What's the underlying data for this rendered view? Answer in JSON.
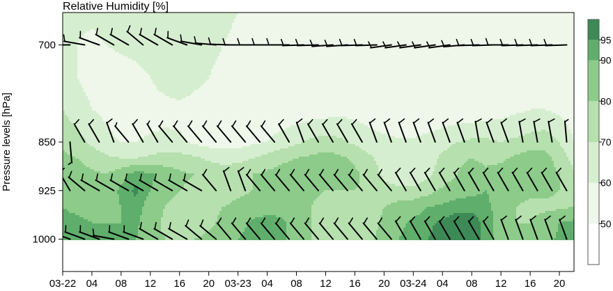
{
  "chart_data": {
    "type": "heatmap",
    "title": "Relative Humidity [%]",
    "ylabel": "Pressure levels [hPa]",
    "xlabel": "",
    "y_tick_labels": [
      "700",
      "850",
      "925",
      "1000"
    ],
    "y_ticks": [
      700,
      850,
      925,
      1000
    ],
    "ylim": [
      1050,
      650
    ],
    "x_tick_labels": [
      "03-22",
      "04",
      "08",
      "12",
      "16",
      "20",
      "03-23",
      "04",
      "08",
      "12",
      "16",
      "20",
      "03-24",
      "04",
      "08",
      "12",
      "16",
      "20"
    ],
    "x_ticks_hours": [
      0,
      4,
      8,
      12,
      16,
      20,
      24,
      28,
      32,
      36,
      40,
      44,
      48,
      52,
      56,
      60,
      64,
      68
    ],
    "xlim_hours": [
      0,
      70
    ],
    "colorbar": {
      "levels": [
        50,
        60,
        70,
        80,
        90,
        95
      ],
      "level_labels": [
        "50",
        "60",
        "70",
        "80",
        "90",
        "95"
      ],
      "range": [
        40,
        100
      ],
      "bins": [
        [
          40,
          50
        ],
        [
          50,
          60
        ],
        [
          60,
          70
        ],
        [
          70,
          80
        ],
        [
          80,
          90
        ],
        [
          90,
          95
        ],
        [
          95,
          100
        ]
      ],
      "colors": [
        "#ffffff",
        "#eef7ea",
        "#d6eed0",
        "#b6e0ae",
        "#8ccb89",
        "#5fae6b",
        "#3d8a57"
      ]
    },
    "levels_hpa": [
      700,
      850,
      925,
      1000
    ],
    "rh_grid": {
      "x_hours": [
        0,
        2,
        4,
        6,
        8,
        10,
        12,
        14,
        16,
        18,
        20,
        22,
        24,
        26,
        28,
        30,
        32,
        34,
        36,
        38,
        40,
        42,
        44,
        46,
        48,
        50,
        52,
        54,
        56,
        58,
        60,
        62,
        64,
        66,
        68,
        70
      ],
      "p_hpa": [
        650,
        700,
        750,
        800,
        850,
        875,
        900,
        925,
        950,
        975,
        1000
      ],
      "values": [
        [
          62,
          62,
          62,
          64,
          64,
          65,
          65,
          66,
          66,
          65,
          63,
          62,
          60,
          59,
          58,
          57,
          57,
          56,
          56,
          56,
          56,
          56,
          56,
          56,
          56,
          55,
          55,
          55,
          55,
          55,
          56,
          56,
          56,
          57,
          57,
          58
        ],
        [
          62,
          60,
          58,
          60,
          62,
          64,
          66,
          68,
          70,
          66,
          63,
          60,
          58,
          58,
          57,
          57,
          57,
          57,
          57,
          57,
          57,
          57,
          56,
          56,
          56,
          56,
          56,
          56,
          56,
          56,
          56,
          56,
          57,
          57,
          58,
          58
        ],
        [
          66,
          60,
          57,
          55,
          55,
          56,
          60,
          66,
          70,
          64,
          60,
          57,
          56,
          56,
          56,
          56,
          56,
          57,
          57,
          57,
          57,
          57,
          56,
          56,
          56,
          55,
          55,
          55,
          55,
          55,
          55,
          56,
          56,
          57,
          58,
          60
        ],
        [
          70,
          64,
          60,
          58,
          55,
          53,
          54,
          55,
          56,
          55,
          54,
          54,
          53,
          53,
          53,
          53,
          53,
          54,
          55,
          57,
          56,
          55,
          54,
          53,
          53,
          52,
          52,
          52,
          52,
          54,
          56,
          58,
          60,
          60,
          58,
          54
        ],
        [
          78,
          74,
          68,
          62,
          60,
          60,
          62,
          64,
          62,
          58,
          56,
          56,
          56,
          58,
          60,
          64,
          68,
          72,
          74,
          72,
          68,
          64,
          62,
          61,
          61,
          63,
          66,
          70,
          72,
          72,
          70,
          72,
          74,
          76,
          70,
          60
        ],
        [
          82,
          80,
          76,
          72,
          70,
          70,
          72,
          74,
          74,
          72,
          68,
          66,
          66,
          70,
          74,
          78,
          80,
          82,
          84,
          82,
          78,
          72,
          66,
          63,
          62,
          66,
          72,
          78,
          80,
          78,
          78,
          82,
          86,
          84,
          76,
          66
        ],
        [
          84,
          84,
          82,
          80,
          86,
          94,
          92,
          86,
          82,
          80,
          78,
          76,
          78,
          80,
          82,
          84,
          84,
          84,
          84,
          84,
          82,
          76,
          68,
          64,
          64,
          68,
          74,
          80,
          84,
          82,
          84,
          86,
          86,
          84,
          80,
          72
        ],
        [
          86,
          86,
          84,
          84,
          92,
          96,
          90,
          84,
          80,
          78,
          76,
          76,
          78,
          80,
          82,
          84,
          84,
          82,
          80,
          80,
          80,
          78,
          74,
          72,
          72,
          76,
          82,
          86,
          88,
          90,
          86,
          84,
          82,
          82,
          80,
          76
        ],
        [
          90,
          88,
          86,
          86,
          90,
          94,
          86,
          80,
          76,
          76,
          78,
          80,
          82,
          84,
          86,
          86,
          84,
          80,
          76,
          74,
          74,
          76,
          80,
          84,
          86,
          90,
          92,
          94,
          94,
          92,
          86,
          80,
          78,
          78,
          78,
          80
        ],
        [
          92,
          92,
          90,
          90,
          90,
          92,
          84,
          78,
          76,
          76,
          78,
          82,
          86,
          92,
          94,
          92,
          86,
          80,
          74,
          72,
          72,
          76,
          82,
          88,
          92,
          94,
          96,
          97,
          97,
          94,
          86,
          80,
          80,
          84,
          90,
          92
        ],
        [
          92,
          92,
          92,
          92,
          92,
          90,
          84,
          80,
          78,
          80,
          82,
          86,
          90,
          94,
          95,
          92,
          86,
          80,
          74,
          72,
          74,
          78,
          84,
          90,
          93,
          95,
          97,
          98,
          97,
          94,
          86,
          82,
          82,
          86,
          92,
          94
        ]
      ]
    },
    "wind_barbs": {
      "x_hours": [
        1,
        3,
        5,
        7,
        9,
        11,
        13,
        15,
        17,
        19,
        21,
        23,
        25,
        27,
        29,
        31,
        33,
        35,
        37,
        39,
        41,
        43,
        45,
        47,
        49,
        51,
        53,
        55,
        57,
        59,
        61,
        63,
        65,
        67,
        69
      ],
      "levels_hpa": [
        700,
        850,
        925,
        1000
      ],
      "direction_deg": {
        "700": [
          270,
          280,
          290,
          300,
          300,
          310,
          300,
          300,
          290,
          280,
          275,
          272,
          270,
          270,
          270,
          270,
          268,
          268,
          266,
          266,
          268,
          268,
          262,
          262,
          262,
          262,
          262,
          265,
          268,
          268,
          270,
          268,
          268,
          268,
          268
        ],
        "850": [
          175,
          330,
          330,
          340,
          320,
          330,
          330,
          320,
          320,
          320,
          320,
          320,
          320,
          320,
          320,
          330,
          340,
          330,
          330,
          330,
          330,
          340,
          340,
          340,
          340,
          340,
          340,
          340,
          350,
          340,
          340,
          350,
          350,
          350,
          355
        ],
        "925": [
          330,
          310,
          300,
          300,
          300,
          300,
          300,
          300,
          300,
          300,
          320,
          340,
          340,
          320,
          320,
          320,
          320,
          320,
          320,
          320,
          320,
          320,
          320,
          330,
          330,
          330,
          330,
          330,
          330,
          330,
          330,
          330,
          330,
          330,
          330
        ],
        "1000": [
          290,
          290,
          290,
          280,
          290,
          290,
          300,
          300,
          300,
          310,
          310,
          320,
          320,
          320,
          320,
          320,
          320,
          320,
          320,
          320,
          320,
          320,
          320,
          330,
          330,
          330,
          330,
          330,
          330,
          330,
          340,
          340,
          340,
          340,
          340
        ]
      },
      "speed_kt": {
        "700": [
          10,
          10,
          10,
          10,
          10,
          10,
          10,
          10,
          10,
          10,
          10,
          10,
          10,
          10,
          10,
          10,
          10,
          10,
          10,
          10,
          10,
          10,
          10,
          10,
          10,
          10,
          10,
          10,
          10,
          10,
          10,
          10,
          10,
          10,
          10
        ],
        "850": [
          5,
          10,
          10,
          10,
          5,
          10,
          5,
          10,
          10,
          10,
          10,
          10,
          10,
          10,
          10,
          10,
          10,
          10,
          10,
          10,
          10,
          10,
          10,
          10,
          10,
          10,
          10,
          10,
          10,
          10,
          10,
          10,
          10,
          10,
          5
        ],
        "925": [
          10,
          10,
          10,
          10,
          10,
          10,
          10,
          10,
          10,
          10,
          10,
          10,
          10,
          10,
          10,
          10,
          10,
          10,
          10,
          10,
          10,
          10,
          10,
          10,
          10,
          10,
          10,
          10,
          10,
          10,
          10,
          10,
          10,
          10,
          10
        ],
        "1000": [
          10,
          10,
          10,
          10,
          10,
          10,
          10,
          10,
          10,
          10,
          10,
          10,
          10,
          10,
          10,
          10,
          10,
          10,
          10,
          10,
          10,
          10,
          10,
          10,
          10,
          10,
          10,
          10,
          10,
          10,
          10,
          10,
          10,
          10,
          10
        ]
      }
    }
  }
}
